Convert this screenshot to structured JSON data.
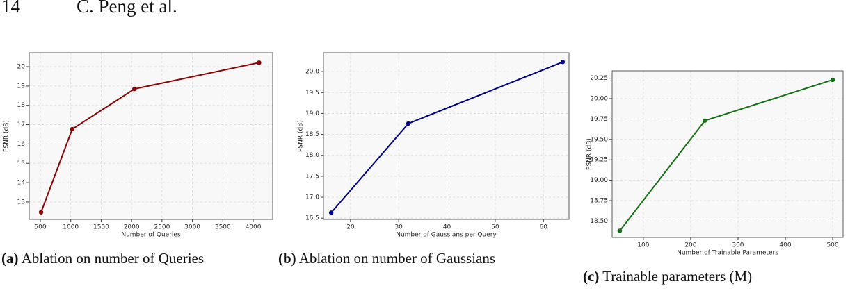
{
  "header": {
    "page_number": "14",
    "authors": "C. Peng et al."
  },
  "chart_data": [
    {
      "type": "line",
      "x_label": "Number of Queries",
      "y_label": "PSNR (dB)",
      "subcaption_label": "(a)",
      "subcaption": "Ablation on number of Queries",
      "x": [
        512,
        1024,
        2048,
        4096
      ],
      "series": [
        {
          "color": "#8b0000",
          "values": [
            12.47,
            16.77,
            18.85,
            20.21
          ]
        }
      ],
      "xlim": [
        317,
        4320
      ],
      "xticks": [
        500,
        1000,
        1500,
        2000,
        2500,
        3000,
        3500,
        4000
      ],
      "ylim": [
        12.1,
        20.72
      ],
      "yticks": [
        13,
        14,
        15,
        16,
        17,
        18,
        19,
        20
      ],
      "grid": true
    },
    {
      "type": "line",
      "x_label": "Number of Gaussians per Query",
      "y_label": "PSNR (dB)",
      "subcaption_label": "(b)",
      "subcaption": "Ablation on number of Gaussians",
      "x": [
        16,
        32,
        64
      ],
      "series": [
        {
          "color": "#00008b",
          "values": [
            16.63,
            18.76,
            20.23
          ]
        }
      ],
      "xlim": [
        14.4,
        65.3
      ],
      "xticks": [
        20,
        30,
        40,
        50,
        60
      ],
      "ylim": [
        16.47,
        20.45
      ],
      "yticks": [
        16.5,
        {
          "value": 17,
          "label": "17.0"
        },
        17.5,
        {
          "value": 18,
          "label": "18.0"
        },
        18.5,
        {
          "value": 19,
          "label": "19.0"
        },
        19.5,
        {
          "value": 20,
          "label": "20.0"
        }
      ],
      "grid": true
    },
    {
      "type": "line",
      "x_label": "Number of Trainable Parameters",
      "y_label": "PSNR (dB)",
      "subcaption_label": "(c)",
      "subcaption": "Trainable parameters (M)",
      "x": [
        50,
        230,
        500
      ],
      "series": [
        {
          "color": "#157015",
          "values": [
            18.38,
            19.73,
            20.23
          ]
        }
      ],
      "xlim": [
        34,
        522
      ],
      "xticks": [
        100,
        200,
        300,
        400,
        500
      ],
      "ylim": [
        18.3,
        20.34
      ],
      "yticks": [
        {
          "value": 18.5,
          "label": "18.50"
        },
        18.75,
        {
          "value": 19,
          "label": "19.00"
        },
        19.25,
        {
          "value": 19.5,
          "label": "19.50"
        },
        19.75,
        {
          "value": 20,
          "label": "20.00"
        },
        20.25
      ],
      "grid": true
    }
  ]
}
